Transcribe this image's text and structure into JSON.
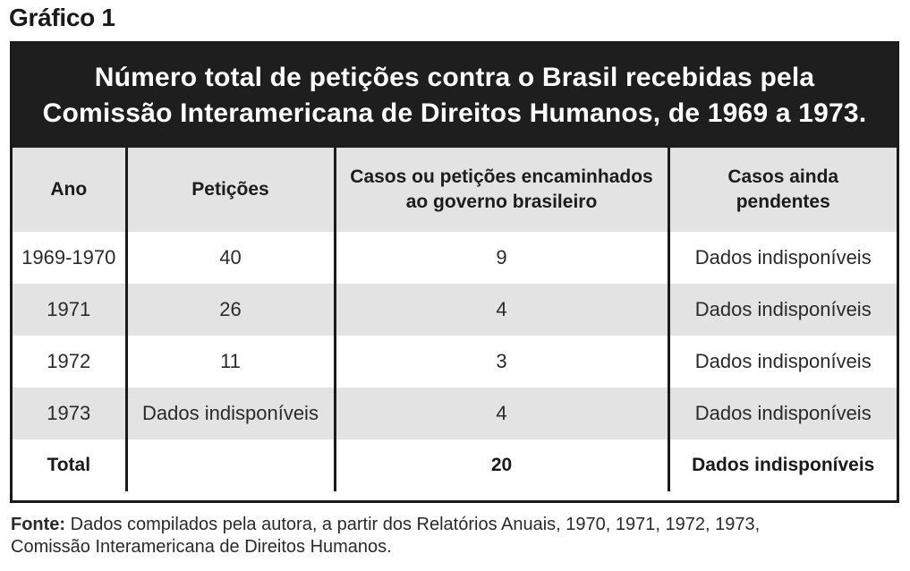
{
  "figure_label": "Gráfico 1",
  "title": {
    "line1": "Número total de petições contra o Brasil recebidas pela",
    "line2": "Comissão Interamericana de Direitos Humanos, de 1969 a 1973."
  },
  "table": {
    "headers": {
      "ano": "Ano",
      "peticoes": "Petições",
      "casos_line1": "Casos ou petições encaminhados",
      "casos_line2": "ao governo brasileiro",
      "pendentes_line1": "Casos ainda",
      "pendentes_line2": "pendentes"
    },
    "rows": [
      {
        "ano": "1969-1970",
        "peticoes": "40",
        "casos": "9",
        "pendentes": "Dados indisponíveis"
      },
      {
        "ano": "1971",
        "peticoes": "26",
        "casos": "4",
        "pendentes": "Dados indisponíveis"
      },
      {
        "ano": "1972",
        "peticoes": "11",
        "casos": "3",
        "pendentes": "Dados indisponíveis"
      },
      {
        "ano": "1973",
        "peticoes": "Dados indisponíveis",
        "casos": "4",
        "pendentes": "Dados indisponíveis"
      }
    ],
    "total": {
      "ano": "Total",
      "peticoes": "",
      "casos": "20",
      "pendentes": "Dados indisponíveis"
    }
  },
  "source": {
    "lead": "Fonte:",
    "line1": " Dados compilados pela autora, a partir dos Relatórios Anuais, 1970, 1971, 1972, 1973,",
    "line2": "Comissão Interamericana de Direitos Humanos."
  },
  "colors": {
    "title_band": "#1e1e1e",
    "shaded_row": "#e3e3e3",
    "border": "#1a1a1a"
  }
}
